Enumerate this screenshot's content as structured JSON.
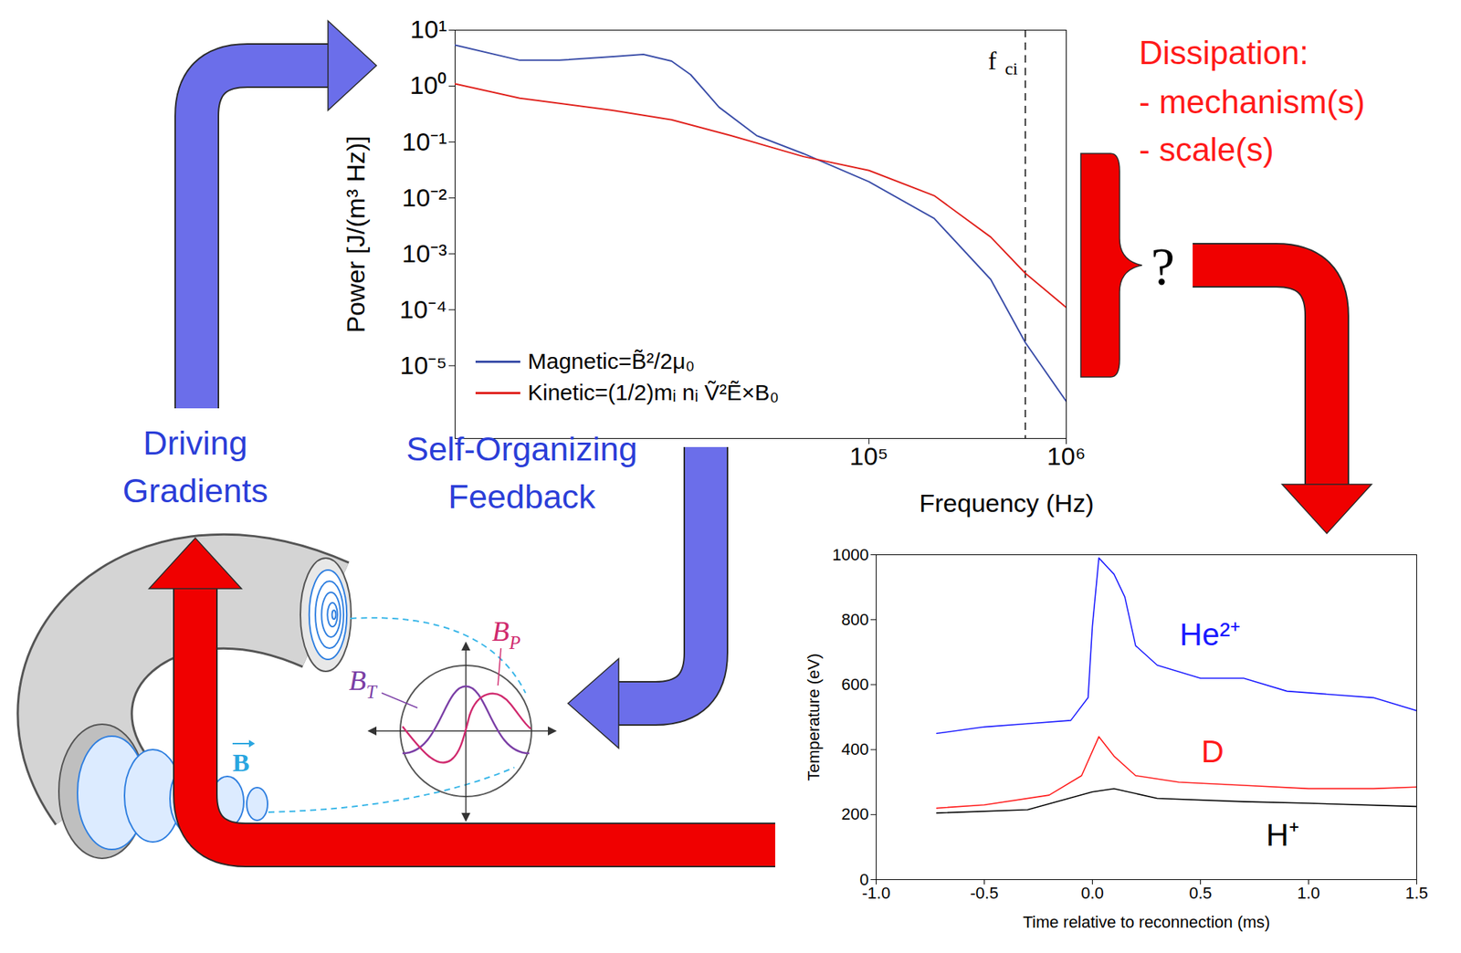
{
  "chart_data": [
    {
      "type": "line",
      "xlabel": "Frequency (Hz)",
      "ylabel": "Power [J/(m³ Hz)]",
      "log": true,
      "xlim": [
        800,
        1000000
      ],
      "ylim": [
        5e-07,
        10
      ],
      "xticks": [
        {
          "value": 100000,
          "label": "10⁵"
        },
        {
          "value": 1000000,
          "label": "10⁶"
        }
      ],
      "yticks": [
        {
          "value": 1e-05,
          "label": "10⁻⁵"
        },
        {
          "value": 0.0001,
          "label": "10⁻⁴"
        },
        {
          "value": 0.001,
          "label": "10⁻³"
        },
        {
          "value": 0.01,
          "label": "10⁻²"
        },
        {
          "value": 0.1,
          "label": "10⁻¹"
        },
        {
          "value": 1,
          "label": "10⁰"
        },
        {
          "value": 10,
          "label": "10¹"
        }
      ],
      "legend": "bottom-left",
      "series": [
        {
          "name": "Magnetic=B̃²/2μ₀",
          "color": "#3a4da8",
          "x": [
            800,
            1700,
            2700,
            5200,
            7200,
            10000,
            12500,
            17400,
            27000,
            46600,
            100000,
            214000,
            414000,
            620000,
            1000000
          ],
          "values": [
            5.4,
            2.9,
            2.9,
            3.4,
            3.7,
            2.8,
            1.6,
            0.42,
            0.13,
            0.062,
            0.0195,
            0.0043,
            0.00035,
            2.6e-05,
            2.3e-06
          ]
        },
        {
          "name": "Kinetic=(1/2)mᵢ nᵢ Ṽ²Ẽ×B₀",
          "color": "#e0201b",
          "x": [
            800,
            1700,
            5000,
            10000,
            20000,
            46600,
            100000,
            214000,
            414000,
            620000,
            1000000
          ],
          "values": [
            1.1,
            0.61,
            0.37,
            0.25,
            0.13,
            0.055,
            0.031,
            0.011,
            0.002,
            0.00045,
            0.00011
          ]
        }
      ],
      "markers": [
        {
          "label": "f",
          "subscript": "ci",
          "x": 620000
        }
      ]
    },
    {
      "type": "line",
      "xlabel": "Time relative to reconnection (ms)",
      "ylabel": "Temperature (eV)",
      "xlim": [
        -1,
        1.5
      ],
      "ylim": [
        0,
        1000
      ],
      "xticks": [
        {
          "value": -1,
          "label": "-1.0"
        },
        {
          "value": -0.5,
          "label": "-0.5"
        },
        {
          "value": 0,
          "label": "0.0"
        },
        {
          "value": 0.5,
          "label": "0.5"
        },
        {
          "value": 1,
          "label": "1.0"
        },
        {
          "value": 1.5,
          "label": "1.5"
        }
      ],
      "yticks": [
        0,
        200,
        400,
        600,
        800,
        1000
      ],
      "series": [
        {
          "name": "He²⁺",
          "color": "#1a1aff",
          "x": [
            -0.72,
            -0.5,
            -0.3,
            -0.1,
            -0.02,
            0,
            0.03,
            0.1,
            0.15,
            0.2,
            0.3,
            0.5,
            0.7,
            0.9,
            1.1,
            1.3,
            1.5
          ],
          "values": [
            450,
            470,
            480,
            490,
            560,
            780,
            990,
            940,
            870,
            720,
            660,
            620,
            620,
            580,
            570,
            560,
            520
          ]
        },
        {
          "name": "D",
          "color": "#ff1a1a",
          "x": [
            -0.72,
            -0.5,
            -0.2,
            -0.05,
            0.03,
            0.1,
            0.2,
            0.4,
            0.7,
            1.0,
            1.3,
            1.5
          ],
          "values": [
            220,
            230,
            260,
            320,
            440,
            380,
            320,
            300,
            290,
            280,
            280,
            285
          ]
        },
        {
          "name": "H⁺",
          "color": "#000000",
          "x": [
            -0.72,
            -0.3,
            0,
            0.1,
            0.3,
            0.7,
            1.0,
            1.5
          ],
          "values": [
            205,
            215,
            270,
            280,
            250,
            240,
            235,
            225
          ]
        }
      ]
    }
  ],
  "diagram": {
    "driving": "Driving Gradients",
    "feedback": "Self-Organizing Feedback",
    "dissipation_title": "Dissipation:",
    "dissipation_items": [
      "- mechanism(s)",
      "- scale(s)"
    ],
    "unknown": "?",
    "field_label": "B",
    "profile_labels": [
      {
        "text": "B",
        "subscript": "T",
        "color": "#7b3fa6"
      },
      {
        "text": "B",
        "subscript": "P",
        "color": "#d02a6e"
      }
    ]
  }
}
